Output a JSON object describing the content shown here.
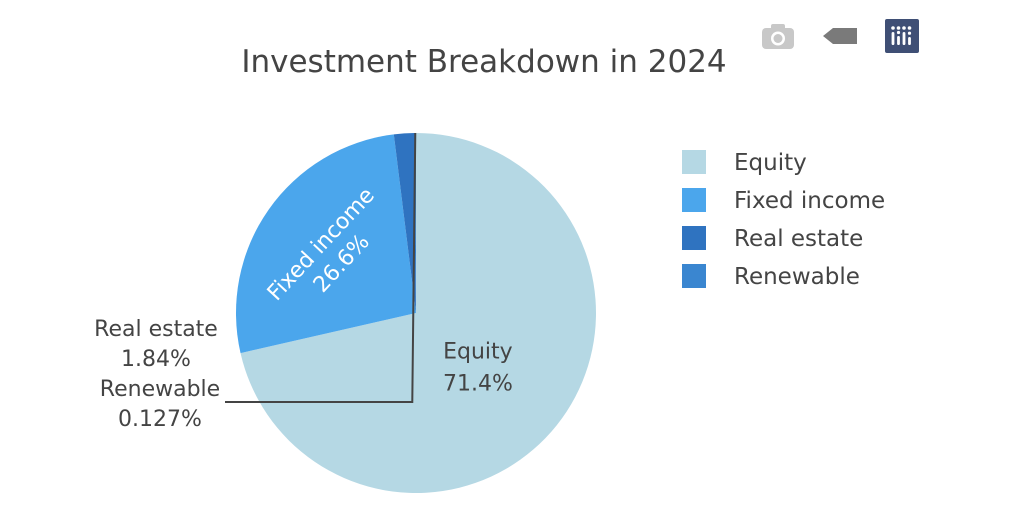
{
  "chart_data": {
    "type": "pie",
    "title": "Investment Breakdown in 2024",
    "slices": [
      {
        "label": "Equity",
        "value": 71.4,
        "percent_text": "71.4%",
        "color": "#b5d8e4"
      },
      {
        "label": "Fixed income",
        "value": 26.6,
        "percent_text": "26.6%",
        "color": "#4ba6ec"
      },
      {
        "label": "Real estate",
        "value": 1.84,
        "percent_text": "1.84%",
        "color": "#2f73c0"
      },
      {
        "label": "Renewable",
        "value": 0.127,
        "percent_text": "0.127%",
        "color": "#3a86d0"
      }
    ],
    "legend_position": "right"
  },
  "toolbar": {
    "icons": [
      "camera-icon",
      "tag-icon",
      "plotly-logo-icon"
    ]
  }
}
